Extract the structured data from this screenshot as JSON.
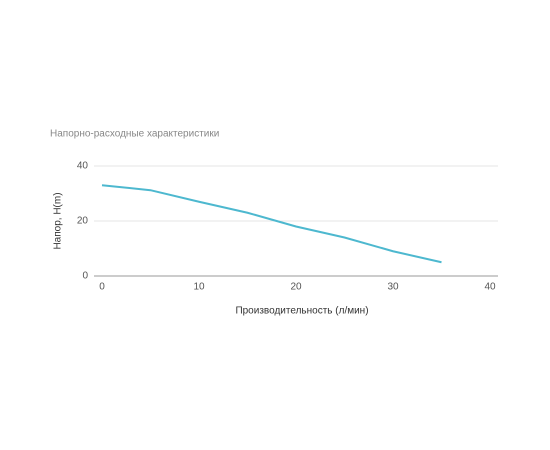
{
  "chart_data": {
    "type": "line",
    "title": "Напорно-расходные характеристики",
    "x_label": "Производительность (л/мин)",
    "y_label": "Напор, H(m)",
    "x": [
      0,
      5,
      10,
      15,
      20,
      25,
      30,
      35
    ],
    "series": [
      {
        "color": "#4db8cf",
        "values": [
          33,
          31.2,
          27,
          23,
          18,
          14,
          9,
          5
        ]
      }
    ],
    "xlim": [
      0,
      40
    ],
    "xticks": [
      0,
      10,
      20,
      30,
      40
    ],
    "ylim": [
      0,
      40
    ],
    "yticks": [
      0,
      20,
      40
    ],
    "grid": true
  }
}
